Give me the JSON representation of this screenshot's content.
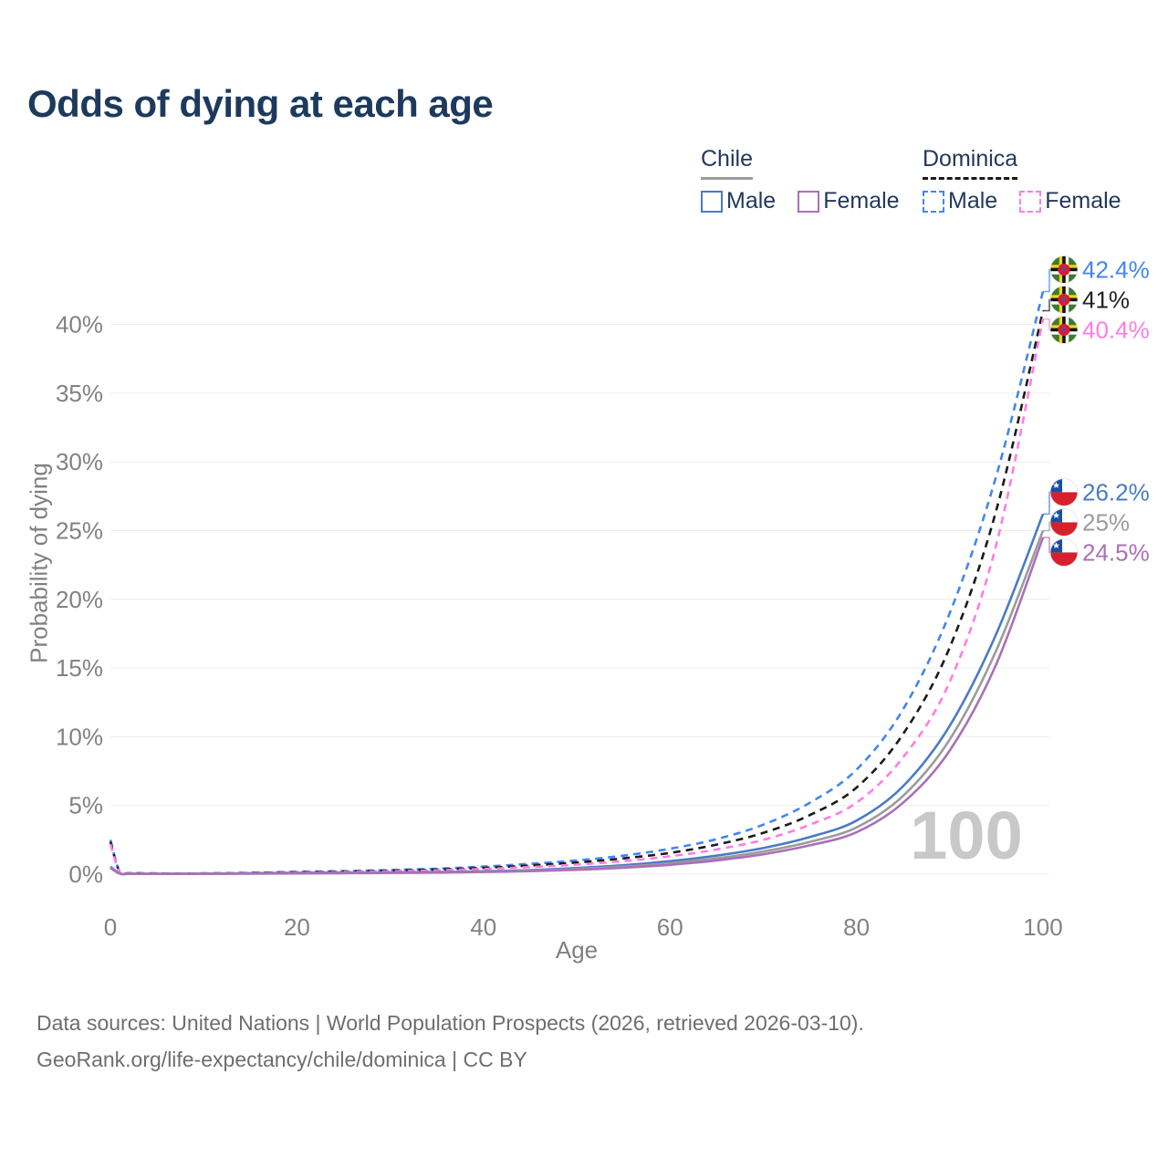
{
  "title": "Odds of dying at each age",
  "watermark": "100",
  "legend": {
    "groups": [
      {
        "id": "chile",
        "label": "Chile",
        "line_style": "solid",
        "line_color": "#9b9b9b",
        "items": [
          {
            "id": "chile-male",
            "label": "Male",
            "color": "#4a7bc4",
            "dashed": false
          },
          {
            "id": "chile-female",
            "label": "Female",
            "color": "#ab6fb8",
            "dashed": false
          }
        ]
      },
      {
        "id": "dominica",
        "label": "Dominica",
        "line_style": "dashed",
        "line_color": "#1a1a1a",
        "items": [
          {
            "id": "dominica-male",
            "label": "Male",
            "color": "#4186f0",
            "dashed": true
          },
          {
            "id": "dominica-female",
            "label": "Female",
            "color": "#ff7ce4",
            "dashed": true
          }
        ]
      }
    ]
  },
  "footer": {
    "line1": "Data sources: United Nations | World Population Prospects (2026, retrieved 2026-03-10).",
    "line2": "GeoRank.org/life-expectancy/chile/dominica | CC BY"
  },
  "chart_data": {
    "type": "line",
    "title": "Odds of dying at each age",
    "xlabel": "Age",
    "ylabel": "Probability of dying",
    "xlim": [
      0,
      100
    ],
    "ylim": [
      0,
      43.5
    ],
    "grid": "horizontal",
    "x_ticks": [
      0,
      20,
      40,
      60,
      80,
      100
    ],
    "y_ticks": [
      0,
      5,
      10,
      15,
      20,
      25,
      30,
      35,
      40
    ],
    "y_tick_suffix": "%",
    "legend_position": "top-right",
    "x": [
      0,
      1,
      2,
      5,
      10,
      15,
      20,
      25,
      30,
      35,
      40,
      45,
      50,
      55,
      60,
      65,
      70,
      75,
      80,
      85,
      90,
      95,
      100
    ],
    "series": [
      {
        "id": "dominica-male",
        "name": "Dominica Male",
        "country": "Dominica",
        "sex": "male",
        "color": "#4186f0",
        "dashed": true,
        "flag": "dominica-flag-icon",
        "end_label": "42.4%",
        "label_color": "#4186f0",
        "values": [
          2.5,
          0.15,
          0.08,
          0.05,
          0.06,
          0.1,
          0.17,
          0.22,
          0.3,
          0.4,
          0.55,
          0.75,
          1.0,
          1.35,
          1.85,
          2.55,
          3.6,
          5.2,
          7.6,
          12.0,
          19.0,
          29.0,
          42.4
        ]
      },
      {
        "id": "dominica-total",
        "name": "Dominica Both sexes",
        "country": "Dominica",
        "sex": "both",
        "color": "#1a1a1a",
        "dashed": true,
        "flag": "dominica-flag-icon",
        "end_label": "41%",
        "label_color": "#212121",
        "values": [
          2.35,
          0.13,
          0.07,
          0.05,
          0.05,
          0.09,
          0.14,
          0.19,
          0.26,
          0.34,
          0.46,
          0.63,
          0.85,
          1.15,
          1.55,
          2.15,
          3.0,
          4.3,
          6.3,
          10.2,
          16.5,
          26.5,
          41.0
        ]
      },
      {
        "id": "dominica-female",
        "name": "Dominica Female",
        "country": "Dominica",
        "sex": "female",
        "color": "#ff7ce4",
        "dashed": true,
        "flag": "dominica-flag-icon",
        "end_label": "40.4%",
        "label_color": "#ff7ce4",
        "values": [
          2.2,
          0.12,
          0.06,
          0.04,
          0.05,
          0.08,
          0.12,
          0.16,
          0.21,
          0.28,
          0.38,
          0.52,
          0.7,
          0.95,
          1.3,
          1.8,
          2.5,
          3.6,
          5.2,
          8.5,
          14.0,
          24.0,
          40.4
        ]
      },
      {
        "id": "chile-male",
        "name": "Chile Male",
        "country": "Chile",
        "sex": "male",
        "color": "#4a7bc4",
        "dashed": false,
        "flag": "chile-flag-icon",
        "end_label": "26.2%",
        "label_color": "#4a7bc4",
        "values": [
          0.55,
          0.05,
          0.03,
          0.02,
          0.03,
          0.06,
          0.09,
          0.11,
          0.13,
          0.16,
          0.21,
          0.3,
          0.45,
          0.65,
          0.95,
          1.35,
          1.9,
          2.7,
          3.9,
          6.4,
          10.8,
          17.5,
          26.2
        ]
      },
      {
        "id": "chile-total",
        "name": "Chile Both sexes",
        "country": "Chile",
        "sex": "both",
        "color": "#9b9b9b",
        "dashed": false,
        "flag": "chile-flag-icon",
        "end_label": "25%",
        "label_color": "#9b9b9b",
        "values": [
          0.5,
          0.04,
          0.03,
          0.02,
          0.03,
          0.05,
          0.07,
          0.09,
          0.11,
          0.14,
          0.18,
          0.26,
          0.38,
          0.55,
          0.8,
          1.15,
          1.65,
          2.35,
          3.4,
          5.7,
          9.8,
          16.3,
          25.0
        ]
      },
      {
        "id": "chile-female",
        "name": "Chile Female",
        "country": "Chile",
        "sex": "female",
        "color": "#ab6fb8",
        "dashed": false,
        "flag": "chile-flag-icon",
        "end_label": "24.5%",
        "label_color": "#ab6fb8",
        "values": [
          0.45,
          0.04,
          0.02,
          0.02,
          0.02,
          0.04,
          0.05,
          0.07,
          0.09,
          0.12,
          0.16,
          0.22,
          0.32,
          0.47,
          0.68,
          1.0,
          1.45,
          2.1,
          3.05,
          5.2,
          9.0,
          15.3,
          24.5
        ]
      }
    ]
  }
}
